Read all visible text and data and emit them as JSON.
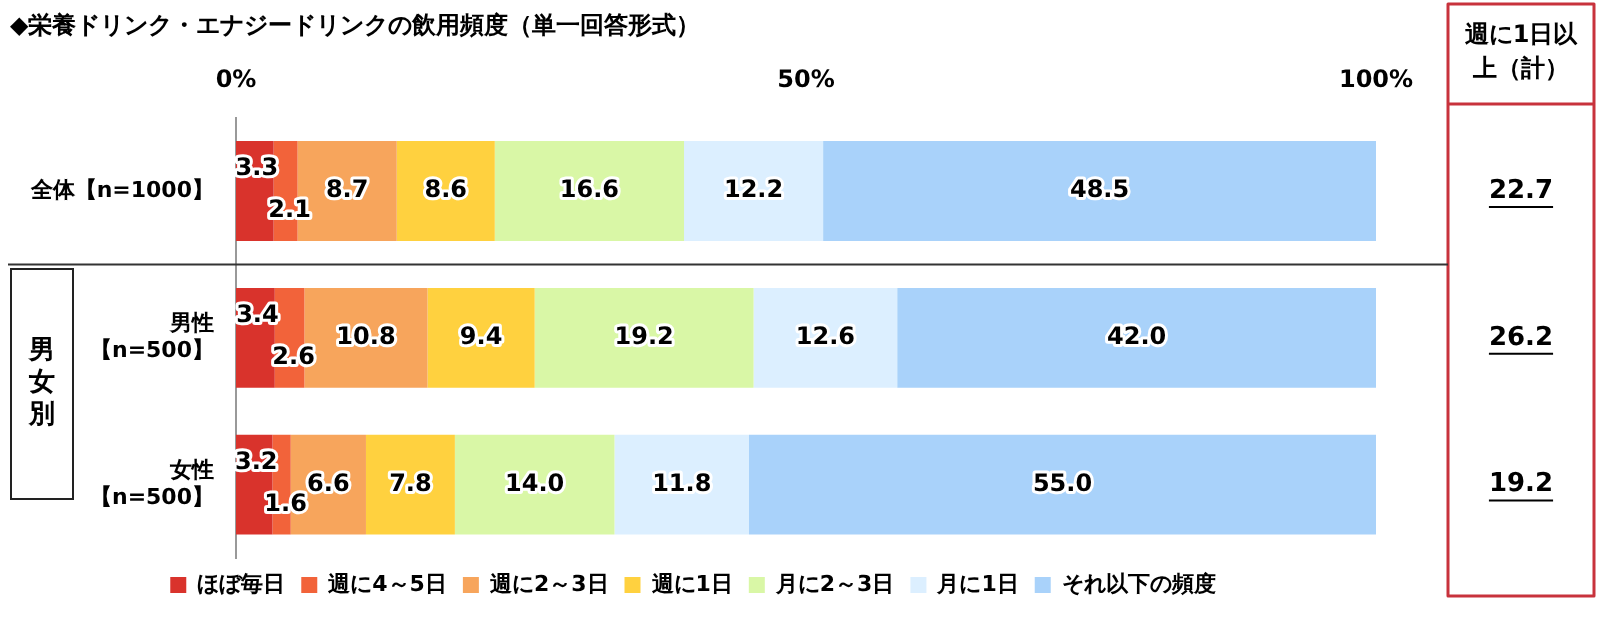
{
  "chart_data": {
    "type": "bar",
    "orientation": "horizontal",
    "stacked": true,
    "title": "◆栄養ドリンク・エナジードリンクの飲用頻度（単一回答形式）",
    "categories": [
      "全体【n=1000】",
      "男性【n=500】",
      "女性【n=500】"
    ],
    "xlim": [
      0,
      100
    ],
    "xticks": [
      {
        "value": 0,
        "label": "0%"
      },
      {
        "value": 50,
        "label": "50%"
      },
      {
        "value": 100,
        "label": "100%"
      }
    ],
    "series": [
      {
        "name": "ほぼ毎日",
        "color": "#d9332c",
        "values": [
          3.3,
          3.4,
          3.2
        ],
        "value_labels": [
          "3.3",
          "3.4",
          "3.2"
        ]
      },
      {
        "name": "週に4～5日",
        "color": "#f2633a",
        "values": [
          2.1,
          2.6,
          1.6
        ],
        "value_labels": [
          "2.1",
          "2.6",
          "1.6"
        ]
      },
      {
        "name": "週に2～3日",
        "color": "#f7a55c",
        "values": [
          8.7,
          10.8,
          6.6
        ],
        "value_labels": [
          "8.7",
          "10.8",
          "6.6"
        ]
      },
      {
        "name": "週に1日",
        "color": "#ffd13f",
        "values": [
          8.6,
          9.4,
          7.8
        ],
        "value_labels": [
          "8.6",
          "9.4",
          "7.8"
        ]
      },
      {
        "name": "月に2～3日",
        "color": "#d9f7a6",
        "values": [
          16.6,
          19.2,
          14.0
        ],
        "value_labels": [
          "16.6",
          "19.2",
          "14.0"
        ]
      },
      {
        "name": "月に1日",
        "color": "#dcefff",
        "values": [
          12.2,
          12.6,
          11.8
        ],
        "value_labels": [
          "12.2",
          "12.6",
          "11.8"
        ]
      },
      {
        "name": "それ以下の頻度",
        "color": "#a9d2fa",
        "values": [
          48.5,
          42.0,
          55.0
        ],
        "value_labels": [
          "48.5",
          "42.0",
          "55.0"
        ]
      }
    ],
    "annotations": [
      "男女別",
      "週に1日以上（計）",
      "22.7",
      "26.2",
      "19.2"
    ],
    "legend": "bottom",
    "grid": false
  }
}
